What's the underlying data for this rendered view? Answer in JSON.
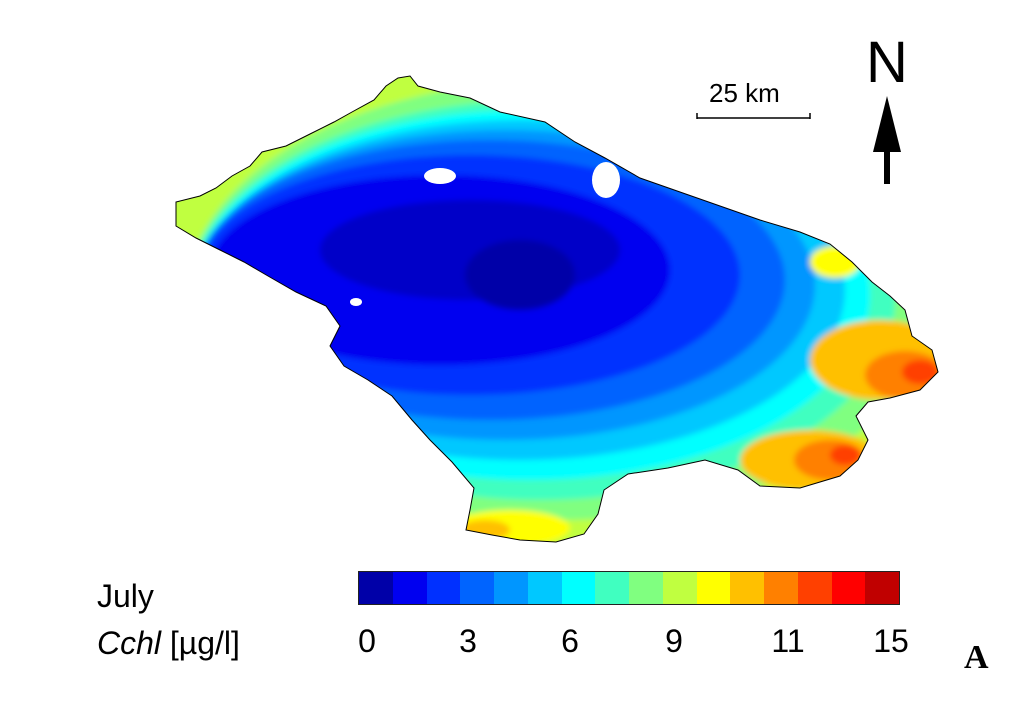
{
  "map": {
    "month": "July",
    "variable_symbol": "Cchl",
    "variable_unit": "[µg/l]",
    "north_label": "N",
    "scale_bar_label": "25 km",
    "panel_letter": "A",
    "colorbar": {
      "colors": [
        "#0000a8",
        "#0000f0",
        "#0030ff",
        "#0064ff",
        "#0096ff",
        "#00c8ff",
        "#00ffff",
        "#40ffc0",
        "#80ff80",
        "#c0ff40",
        "#ffff00",
        "#ffc000",
        "#ff8000",
        "#ff4000",
        "#ff0000",
        "#c00000"
      ],
      "ticks": [
        "0",
        "3",
        "6",
        "9",
        "11",
        "15"
      ]
    }
  }
}
